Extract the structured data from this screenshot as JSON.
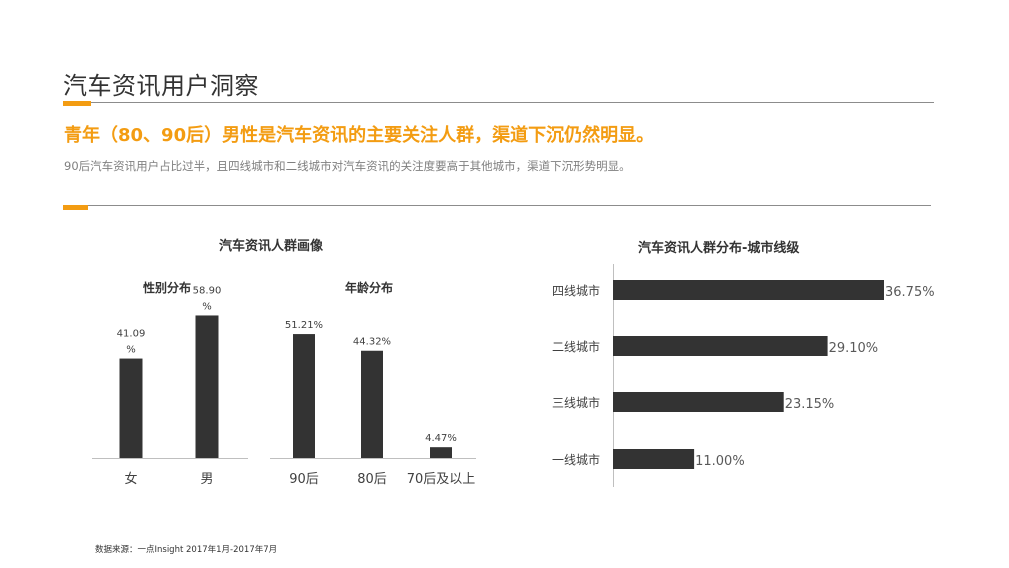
{
  "header": {
    "title": "汽车资讯用户洞察",
    "headline": "青年（80、90后）男性是汽车资讯的主要关注人群，渠道下沉仍然明显。",
    "subline": "90后汽车资讯用户占比过半，且四线城市和二线城市对汽车资讯的关注度要高于其他城市，渠道下沉形势明显。"
  },
  "footer": {
    "source": "数据来源：一点Insight   2017年1月-2017年7月"
  },
  "colors": {
    "accent": "#f39c12",
    "bar": "#333333"
  },
  "chart_data": [
    {
      "type": "bar",
      "title": "汽车资讯人群画像",
      "subtitle": "性别分布",
      "categories": [
        "女",
        "男"
      ],
      "values": [
        41.09,
        58.9
      ],
      "labels": [
        "41.09\n%",
        "58.90\n%"
      ],
      "ylim": [
        0,
        100
      ]
    },
    {
      "type": "bar",
      "title": "汽车资讯人群画像",
      "subtitle": "年龄分布",
      "categories": [
        "90后",
        "80后",
        "70后及以上"
      ],
      "values": [
        51.21,
        44.32,
        4.47
      ],
      "labels": [
        "51.21%",
        "44.32%",
        "4.47%"
      ],
      "ylim": [
        0,
        100
      ]
    },
    {
      "type": "bar",
      "orientation": "horizontal",
      "title": "汽车资讯人群分布-城市线级",
      "categories": [
        "四线城市",
        "二线城市",
        "三线城市",
        "一线城市"
      ],
      "values": [
        36.75,
        29.1,
        23.15,
        11.0
      ],
      "labels": [
        "36.75%",
        "29.10%",
        "23.15%",
        "11.00%"
      ]
    }
  ]
}
